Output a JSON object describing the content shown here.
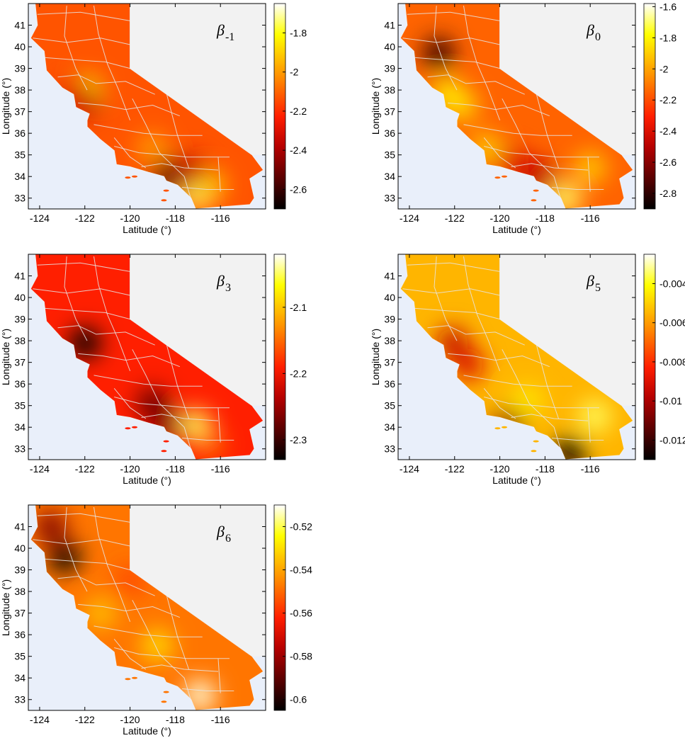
{
  "figure": {
    "x_axis_label": "Latitude (°)",
    "y_axis_label": "Longitude (°)",
    "x_ticks": [
      -124,
      -122,
      -120,
      -118,
      -116
    ],
    "y_ticks": [
      33,
      34,
      35,
      36,
      37,
      38,
      39,
      40,
      41
    ],
    "x_range": [
      -124.5,
      -114.0
    ],
    "y_range": [
      32.5,
      42.0
    ]
  },
  "panels": [
    {
      "id": "beta-minus1",
      "symbol": "β",
      "subscript": "-1",
      "colorbar_ticks": [
        -1.8,
        -2,
        -2.2,
        -2.4,
        -2.6
      ],
      "colorbar_range": [
        -2.7,
        -1.65
      ],
      "base_value": -2.13,
      "hotspots": [
        {
          "lon": -121.95,
          "lat": 37.95,
          "value": -1.8
        },
        {
          "lon": -122.1,
          "lat": 37.5,
          "value": -2.45
        },
        {
          "lon": -122.4,
          "lat": 37.75,
          "value": -2.3
        },
        {
          "lon": -118.25,
          "lat": 34.05,
          "value": -2.6
        },
        {
          "lon": -117.0,
          "lat": 33.2,
          "value": -1.75
        },
        {
          "lon": -116.5,
          "lat": 33.6,
          "value": -1.9
        },
        {
          "lon": -117.3,
          "lat": 34.3,
          "value": -2.35
        },
        {
          "lon": -119.0,
          "lat": 35.3,
          "value": -2.0
        }
      ]
    },
    {
      "id": "beta-0",
      "symbol": "β",
      "subscript": "0",
      "colorbar_ticks": [
        -1.6,
        -1.8,
        -2,
        -2.2,
        -2.4,
        -2.6,
        -2.8
      ],
      "colorbar_range": [
        -2.9,
        -1.58
      ],
      "base_value": -2.15,
      "hotspots": [
        {
          "lon": -122.7,
          "lat": 39.7,
          "value": -2.8
        },
        {
          "lon": -122.3,
          "lat": 37.8,
          "value": -1.8
        },
        {
          "lon": -121.7,
          "lat": 37.3,
          "value": -1.85
        },
        {
          "lon": -118.25,
          "lat": 34.0,
          "value": -2.5
        },
        {
          "lon": -117.1,
          "lat": 33.0,
          "value": -1.7
        },
        {
          "lon": -116.0,
          "lat": 34.4,
          "value": -1.9
        },
        {
          "lon": -119.4,
          "lat": 34.6,
          "value": -2.4
        },
        {
          "lon": -120.6,
          "lat": 35.3,
          "value": -1.9
        }
      ]
    },
    {
      "id": "beta-3",
      "symbol": "β",
      "subscript": "3",
      "colorbar_ticks": [
        -2.1,
        -2.2,
        -2.3
      ],
      "colorbar_range": [
        -2.33,
        -2.02
      ],
      "base_value": -2.19,
      "hotspots": [
        {
          "lon": -122.0,
          "lat": 37.9,
          "value": -2.33
        },
        {
          "lon": -119.0,
          "lat": 35.1,
          "value": -2.28
        },
        {
          "lon": -117.1,
          "lat": 34.1,
          "value": -2.05
        },
        {
          "lon": -118.4,
          "lat": 34.1,
          "value": -2.26
        },
        {
          "lon": -116.5,
          "lat": 33.2,
          "value": -2.15
        }
      ]
    },
    {
      "id": "beta-5",
      "symbol": "β",
      "subscript": "5",
      "colorbar_ticks": [
        -0.004,
        -0.006,
        -0.008,
        -0.01,
        -0.012
      ],
      "colorbar_range": [
        -0.013,
        -0.0025
      ],
      "base_value": -0.0055,
      "hotspots": [
        {
          "lon": -116.9,
          "lat": 32.8,
          "value": -0.0128
        },
        {
          "lon": -119.6,
          "lat": 34.1,
          "value": -0.0105
        },
        {
          "lon": -122.1,
          "lat": 37.9,
          "value": -0.0095
        },
        {
          "lon": -121.4,
          "lat": 36.9,
          "value": -0.009
        },
        {
          "lon": -115.8,
          "lat": 34.5,
          "value": -0.0035
        },
        {
          "lon": -118.8,
          "lat": 35.2,
          "value": -0.0045
        }
      ]
    },
    {
      "id": "beta-6",
      "symbol": "β",
      "subscript": "6",
      "colorbar_ticks": [
        -0.52,
        -0.54,
        -0.56,
        -0.58,
        -0.6
      ],
      "colorbar_range": [
        -0.605,
        -0.51
      ],
      "base_value": -0.548,
      "hotspots": [
        {
          "lon": -122.9,
          "lat": 39.6,
          "value": -0.604
        },
        {
          "lon": -123.5,
          "lat": 41.0,
          "value": -0.585
        },
        {
          "lon": -116.9,
          "lat": 33.2,
          "value": -0.512
        },
        {
          "lon": -118.8,
          "lat": 35.5,
          "value": -0.53
        },
        {
          "lon": -121.3,
          "lat": 37.0,
          "value": -0.535
        },
        {
          "lon": -120.0,
          "lat": 38.5,
          "value": -0.555
        }
      ]
    }
  ]
}
